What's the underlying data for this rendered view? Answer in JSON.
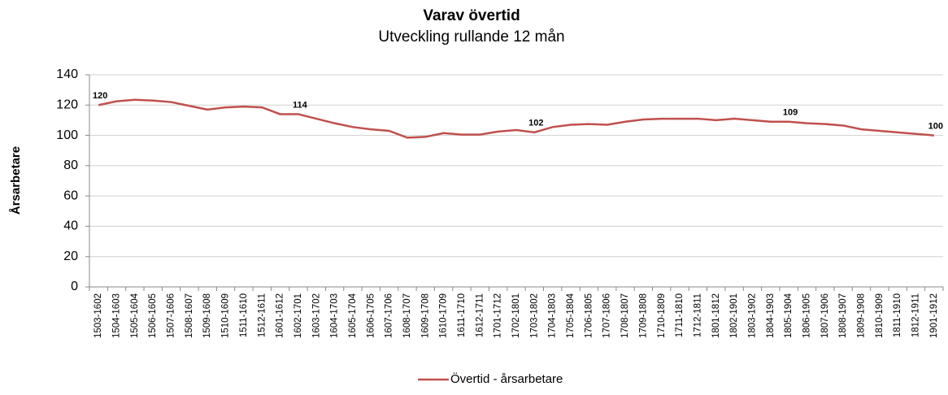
{
  "chart_data": {
    "type": "line",
    "title": "Varav övertid",
    "subtitle": "Utveckling rullande 12 mån",
    "y_label": "Årsarbetare",
    "categories": [
      "1503-1602",
      "1504-1603",
      "1505-1604",
      "1506-1605",
      "1507-1606",
      "1508-1607",
      "1509-1608",
      "1510-1609",
      "1511-1610",
      "1512-1611",
      "1601-1612",
      "1602-1701",
      "1603-1702",
      "1604-1703",
      "1605-1704",
      "1606-1705",
      "1607-1706",
      "1608-1707",
      "1609-1708",
      "1610-1709",
      "1611-1710",
      "1612-1711",
      "1701-1712",
      "1702-1801",
      "1703-1802",
      "1704-1803",
      "1705-1804",
      "1706-1805",
      "1707-1806",
      "1708-1807",
      "1709-1808",
      "1710-1809",
      "1711-1810",
      "1712-1811",
      "1801-1812",
      "1802-1901",
      "1803-1902",
      "1804-1903",
      "1805-1904",
      "1806-1905",
      "1807-1906",
      "1808-1907",
      "1809-1908",
      "1810-1909",
      "1811-1910",
      "1812-1911",
      "1901-1912"
    ],
    "series": [
      {
        "name": "Övertid - årsarbetare",
        "color": "#c0504d",
        "values": [
          120,
          122.5,
          123.5,
          123,
          122,
          119.5,
          117,
          118.5,
          119,
          118.5,
          114,
          114,
          111,
          108,
          105.5,
          104,
          103,
          98.5,
          99,
          101.5,
          100.5,
          100.5,
          102.5,
          103.5,
          102,
          105.5,
          107,
          107.5,
          107,
          109,
          110.5,
          111,
          111,
          111,
          110,
          111,
          110,
          109,
          109,
          108,
          107.5,
          106.5,
          104,
          103,
          102,
          101,
          100
        ]
      }
    ],
    "data_labels_at": [
      0,
      11,
      24,
      38,
      46
    ],
    "ylim": [
      0,
      140
    ],
    "yticks": [
      0,
      20,
      40,
      60,
      80,
      100,
      120,
      140
    ],
    "grid": true,
    "legend": "bottom"
  }
}
